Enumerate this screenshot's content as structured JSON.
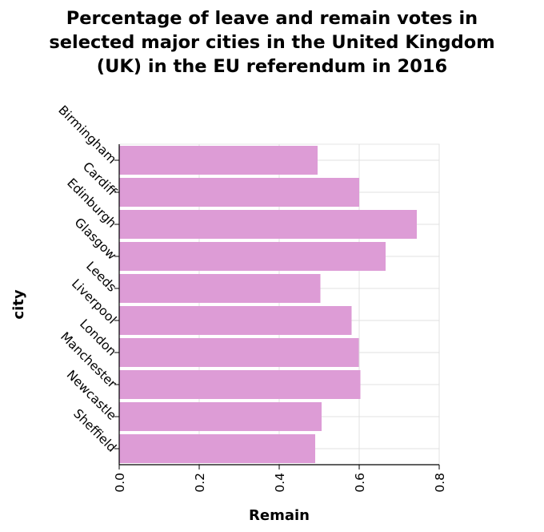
{
  "chart_data": {
    "type": "bar",
    "orientation": "horizontal",
    "title_lines": [
      "Percentage of leave and remain votes in",
      "selected major cities in the United Kingdom",
      "(UK) in the EU referendum in 2016"
    ],
    "xlabel": "Remain",
    "ylabel": "city",
    "categories": [
      "Birmingham",
      "Cardiff",
      "Edinburgh",
      "Glasgow",
      "Leeds",
      "Liverpool",
      "London",
      "Manchester",
      "Newcastle",
      "Sheffield"
    ],
    "values": [
      0.496,
      0.6,
      0.744,
      0.666,
      0.503,
      0.581,
      0.599,
      0.603,
      0.506,
      0.49
    ],
    "xlim": [
      0,
      0.8
    ],
    "xticks": [
      0,
      0.2,
      0.4,
      0.6,
      0.8
    ],
    "xtick_labels": [
      "0.0",
      "0.2",
      "0.4",
      "0.6",
      "0.8"
    ],
    "grid": true,
    "bar_color": "#dd9cd6",
    "grid_color": "#e0e0e0"
  }
}
